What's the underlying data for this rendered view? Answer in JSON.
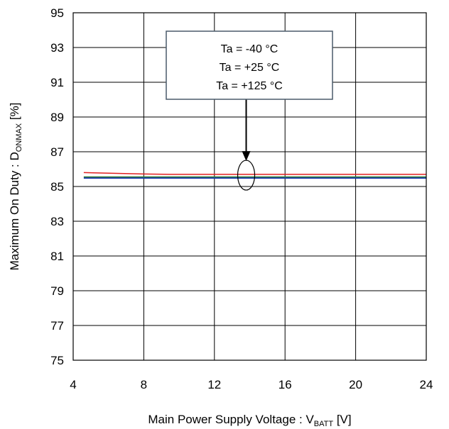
{
  "chart_data": {
    "type": "line",
    "xlabel": {
      "main": "Main Power Supply Voltage : V",
      "sub": "BATT",
      "suffix": " [V]"
    },
    "ylabel": {
      "main": "Maximum On Duty : D",
      "sub": "ONMAX",
      "suffix": " [%]"
    },
    "xlim": [
      4,
      24
    ],
    "ylim": [
      75,
      95
    ],
    "xticks": [
      4,
      8,
      12,
      16,
      20,
      24
    ],
    "yticks": [
      75,
      77,
      79,
      81,
      83,
      85,
      87,
      89,
      91,
      93,
      95
    ],
    "grid": true,
    "series": [
      {
        "color": "#1a3ab0",
        "x": [
          4.6,
          8,
          12,
          16,
          20,
          24
        ],
        "y": [
          85.5,
          85.5,
          85.5,
          85.5,
          85.5,
          85.5
        ]
      },
      {
        "color": "#2e7d32",
        "x": [
          4.6,
          8,
          12,
          16,
          20,
          24
        ],
        "y": [
          85.55,
          85.55,
          85.55,
          85.55,
          85.55,
          85.55
        ]
      },
      {
        "color": "#e02020",
        "x": [
          4.6,
          8,
          9.5,
          12,
          16,
          20,
          24
        ],
        "y": [
          85.8,
          85.72,
          85.7,
          85.7,
          85.7,
          85.7,
          85.7
        ]
      }
    ],
    "annotation": {
      "lines": [
        "Ta = -40 °C",
        "Ta = +25 °C",
        "Ta = +125 °C"
      ],
      "arrow_target": {
        "x": 13.8,
        "y": 85.65
      }
    }
  }
}
